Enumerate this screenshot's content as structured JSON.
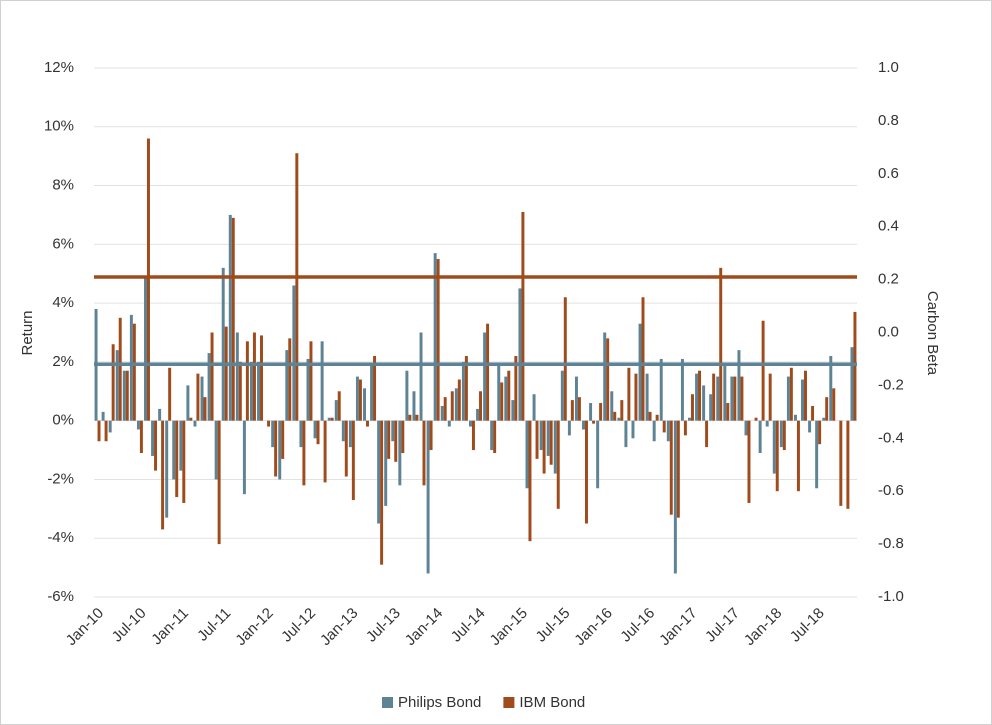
{
  "chart_data": {
    "type": "bar",
    "y_label": "Return",
    "y2_label": "Carbon Beta",
    "categories": [
      "Jan-10",
      null,
      null,
      null,
      null,
      null,
      "Jul-10",
      null,
      null,
      null,
      null,
      null,
      "Jan-11",
      null,
      null,
      null,
      null,
      null,
      "Jul-11",
      null,
      null,
      null,
      null,
      null,
      "Jan-12",
      null,
      null,
      null,
      null,
      null,
      "Jul-12",
      null,
      null,
      null,
      null,
      null,
      "Jan-13",
      null,
      null,
      null,
      null,
      null,
      "Jul-13",
      null,
      null,
      null,
      null,
      null,
      "Jan-14",
      null,
      null,
      null,
      null,
      null,
      "Jul-14",
      null,
      null,
      null,
      null,
      null,
      "Jan-15",
      null,
      null,
      null,
      null,
      null,
      "Jul-15",
      null,
      null,
      null,
      null,
      null,
      "Jan-16",
      null,
      null,
      null,
      null,
      null,
      "Jul-16",
      null,
      null,
      null,
      null,
      null,
      "Jan-17",
      null,
      null,
      null,
      null,
      null,
      "Jul-17",
      null,
      null,
      null,
      null,
      null,
      "Jan-18",
      null,
      null,
      null,
      null,
      null,
      "Jul-18",
      null,
      null,
      null,
      null,
      null
    ],
    "series": [
      {
        "name": "Philips Bond",
        "color": "#5e8394",
        "carbon_beta": -0.12,
        "values": [
          3.8,
          0.3,
          -0.4,
          2.4,
          1.7,
          3.6,
          -0.3,
          4.9,
          -1.2,
          0.4,
          -3.3,
          -2.0,
          -1.7,
          1.2,
          -0.2,
          1.5,
          2.3,
          -2.0,
          5.2,
          7.0,
          3.0,
          -2.5,
          2.0,
          2.0,
          0.0,
          -0.9,
          -2.0,
          2.4,
          4.6,
          -0.9,
          2.1,
          -0.6,
          2.7,
          0.1,
          0.7,
          -0.7,
          -0.9,
          1.5,
          1.1,
          1.9,
          -3.5,
          -2.9,
          -0.7,
          -2.2,
          1.7,
          1.0,
          3.0,
          -5.2,
          5.7,
          0.5,
          -0.2,
          1.1,
          2.0,
          -0.2,
          0.4,
          3.0,
          -1.0,
          1.9,
          1.5,
          0.7,
          4.5,
          -2.3,
          0.9,
          -1.0,
          -1.2,
          -1.8,
          1.7,
          -0.5,
          1.5,
          -0.3,
          0.6,
          -2.3,
          3.0,
          1.0,
          0.1,
          -0.9,
          -0.6,
          3.3,
          1.6,
          -0.7,
          2.1,
          -0.7,
          -5.2,
          2.1,
          0.1,
          1.6,
          1.2,
          0.9,
          1.5,
          1.9,
          1.5,
          2.4,
          -0.5,
          0.0,
          -1.1,
          -0.2,
          -1.8,
          -0.9,
          1.5,
          0.2,
          1.4,
          -0.4,
          -2.3,
          0.1,
          2.2,
          0.0,
          0.0,
          2.5
        ]
      },
      {
        "name": "IBM Bond",
        "color": "#a04b1c",
        "carbon_beta": 0.21,
        "values": [
          -0.7,
          -0.7,
          2.6,
          3.5,
          1.7,
          3.3,
          -1.1,
          9.6,
          -1.7,
          -3.7,
          1.8,
          -2.6,
          -2.8,
          0.1,
          1.6,
          0.8,
          3.0,
          -4.2,
          3.2,
          6.9,
          2.0,
          2.7,
          3.0,
          2.9,
          -0.2,
          -1.9,
          -1.3,
          2.8,
          9.1,
          -2.2,
          2.7,
          -0.8,
          -2.1,
          0.1,
          1.0,
          -1.9,
          -2.7,
          1.4,
          -0.2,
          2.2,
          -4.9,
          -1.3,
          -1.4,
          -1.1,
          0.2,
          0.2,
          -2.2,
          -1.0,
          5.5,
          0.8,
          1.0,
          1.4,
          2.2,
          -1.0,
          1.0,
          3.3,
          -1.1,
          1.3,
          1.7,
          2.2,
          7.1,
          -4.1,
          -1.3,
          -1.8,
          -1.5,
          -3.0,
          4.2,
          0.7,
          0.8,
          -3.5,
          -0.1,
          0.6,
          2.8,
          0.3,
          0.7,
          1.8,
          1.6,
          4.2,
          0.3,
          0.2,
          -0.4,
          -3.2,
          -3.3,
          -0.5,
          0.9,
          1.7,
          -0.9,
          1.6,
          5.2,
          0.6,
          1.5,
          1.5,
          -2.8,
          0.1,
          3.4,
          1.6,
          -2.4,
          -1.0,
          1.8,
          -2.4,
          1.7,
          0.5,
          -0.8,
          0.8,
          1.1,
          -2.9,
          -3.0,
          3.7
        ]
      }
    ],
    "ylim": [
      -6,
      12
    ],
    "yticks": [
      {
        "value": -6,
        "label": "-6%"
      },
      {
        "value": -4,
        "label": "-4%"
      },
      {
        "value": -2,
        "label": "-2%"
      },
      {
        "value": 0,
        "label": "0%"
      },
      {
        "value": 2,
        "label": "2%"
      },
      {
        "value": 4,
        "label": "4%"
      },
      {
        "value": 6,
        "label": "6%"
      },
      {
        "value": 8,
        "label": "8%"
      },
      {
        "value": 10,
        "label": "10%"
      },
      {
        "value": 12,
        "label": "12%"
      }
    ],
    "y2lim": [
      -1,
      1
    ],
    "y2ticks": [
      {
        "value": -1,
        "label": "-1.0"
      },
      -0.8,
      -0.6,
      -0.4,
      -0.2,
      {
        "value": 0,
        "label": "0.0"
      },
      0.2,
      0.4,
      0.6,
      0.8,
      {
        "value": 1,
        "label": "1.0"
      }
    ],
    "grid": true,
    "legend": "bottom"
  }
}
